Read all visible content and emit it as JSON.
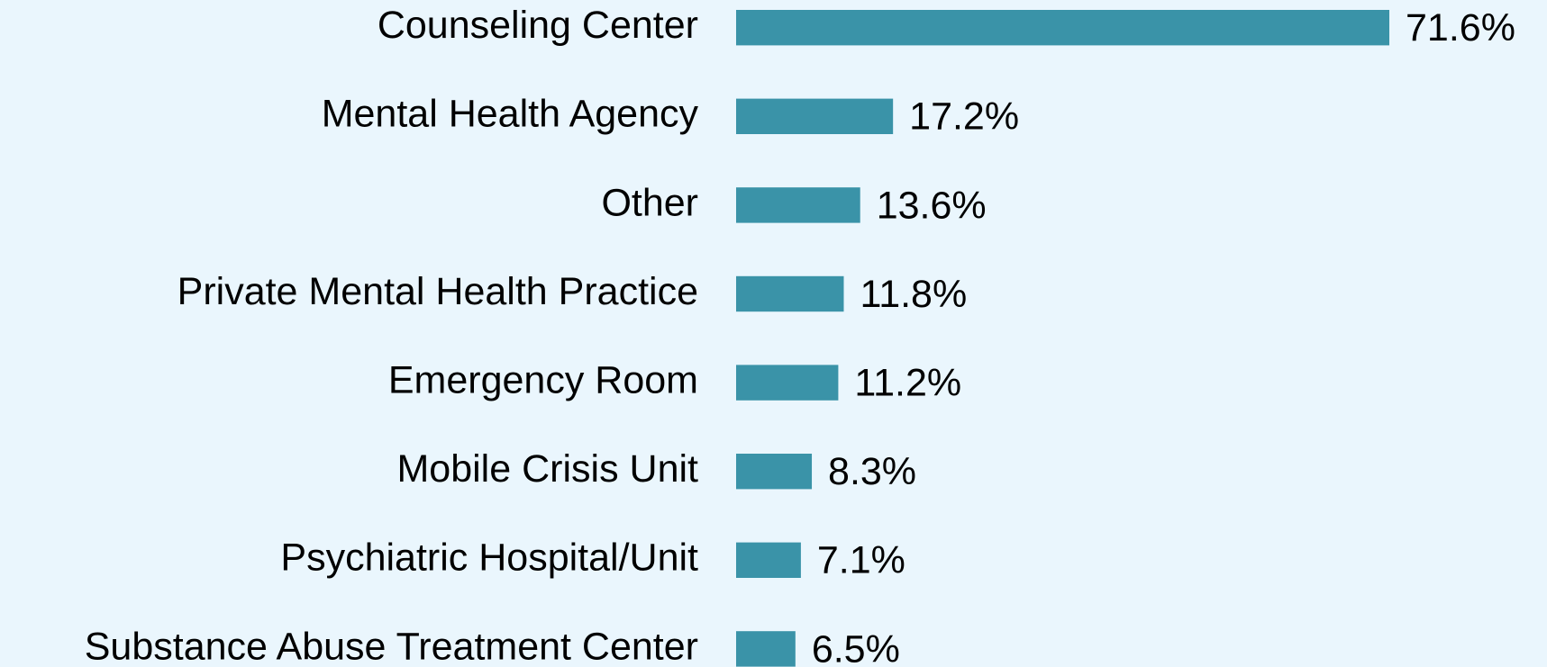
{
  "chart_data": {
    "type": "barh",
    "categories": [
      "Counseling Center",
      "Mental Health Agency",
      "Other",
      "Private Mental Health Practice",
      "Emergency Room",
      "Mobile Crisis Unit",
      "Psychiatric Hospital/Unit",
      "Substance Abuse Treatment Center"
    ],
    "values": [
      71.6,
      17.2,
      13.6,
      11.8,
      11.2,
      8.3,
      7.1,
      6.5
    ],
    "value_labels": [
      "71.6%",
      "17.2%",
      "13.6%",
      "11.8%",
      "11.2%",
      "8.3%",
      "7.1%",
      "6.5%"
    ],
    "color": "#3a93a8"
  }
}
